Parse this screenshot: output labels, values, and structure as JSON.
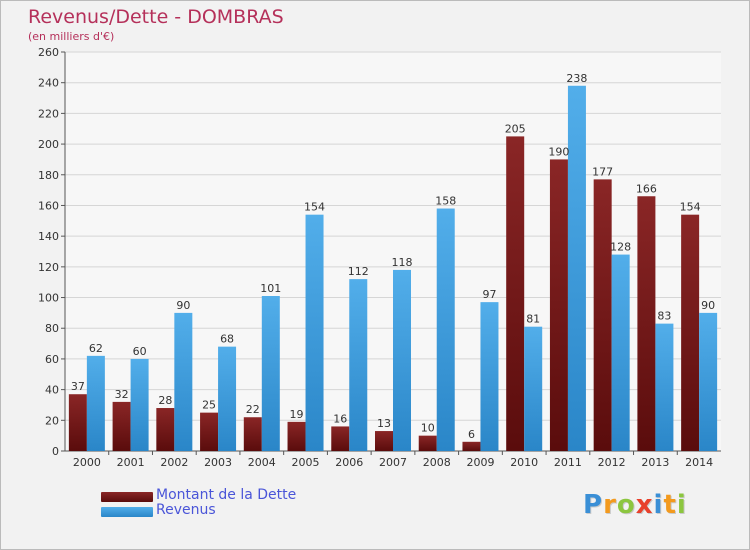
{
  "header": {
    "title": "Revenus/Dette - DOMBRAS",
    "subtitle": "(en milliers d'€)"
  },
  "chart_data": {
    "type": "bar",
    "title": "Revenus/Dette - DOMBRAS",
    "subtitle": "(en milliers d'€)",
    "xlabel": "",
    "ylabel": "",
    "ylim": [
      0,
      260
    ],
    "yticks": [
      0,
      20,
      40,
      60,
      80,
      100,
      120,
      140,
      160,
      180,
      200,
      220,
      240,
      260
    ],
    "grid": "horizontal",
    "legend_position": "bottom-left",
    "categories": [
      "2000",
      "2001",
      "2002",
      "2003",
      "2004",
      "2005",
      "2006",
      "2007",
      "2008",
      "2009",
      "2010",
      "2011",
      "2012",
      "2013",
      "2014"
    ],
    "series": [
      {
        "name": "Montant de la Dette",
        "color": "#7a1a1a",
        "values": [
          37,
          32,
          28,
          25,
          22,
          19,
          16,
          13,
          10,
          6,
          205,
          190,
          177,
          166,
          154
        ]
      },
      {
        "name": "Revenus",
        "color": "#3a98dc",
        "values": [
          62,
          60,
          90,
          68,
          101,
          154,
          112,
          118,
          158,
          97,
          81,
          238,
          128,
          83,
          90
        ]
      }
    ]
  },
  "legend": {
    "items": [
      {
        "label": "Montant de la Dette",
        "color": "#7a1a1a"
      },
      {
        "label": "Revenus",
        "color": "#3a98dc"
      }
    ]
  },
  "logo": {
    "letters": [
      {
        "ch": "P",
        "color": "#3a8fd6"
      },
      {
        "ch": "r",
        "color": "#f39a1e"
      },
      {
        "ch": "o",
        "color": "#8cc63f"
      },
      {
        "ch": "x",
        "color": "#e8412c"
      },
      {
        "ch": "i",
        "color": "#3a8fd6"
      },
      {
        "ch": "t",
        "color": "#f39a1e"
      },
      {
        "ch": "i",
        "color": "#8cc63f"
      }
    ]
  }
}
